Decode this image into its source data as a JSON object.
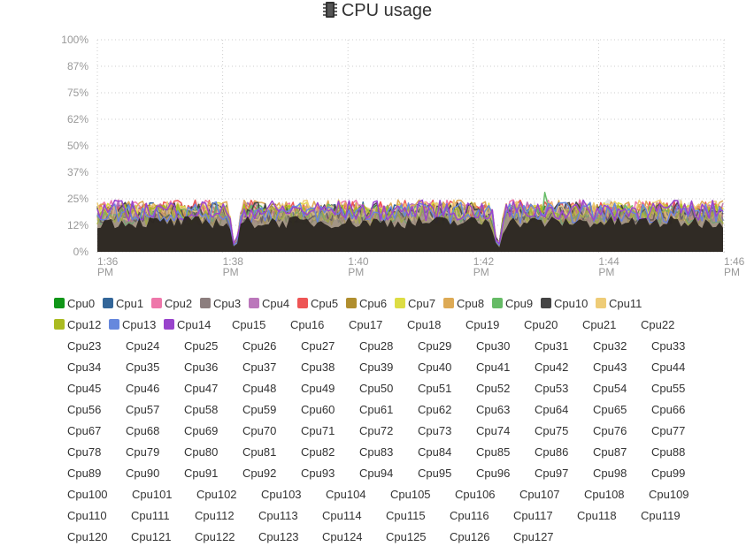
{
  "chart_data": {
    "type": "area",
    "title": "CPU usage",
    "title_icon": "cpu-chip-icon",
    "stacked": false,
    "ylim": [
      0,
      100
    ],
    "y_ticks": [
      "100%",
      "87%",
      "75%",
      "62%",
      "50%",
      "37%",
      "25%",
      "12%",
      "0%"
    ],
    "x_ticks": [
      "1:36 PM",
      "1:38 PM",
      "1:40 PM",
      "1:42 PM",
      "1:44 PM",
      "1:46 PM"
    ],
    "x_range": [
      "1:36 PM",
      "1:46 PM"
    ],
    "grid": true,
    "legend_position": "bottom",
    "dips_to_zero_at": [
      "1:38 PM",
      "1:42 PM"
    ],
    "approx_typical_range_percent": [
      12,
      25
    ],
    "peak_series": "Cpu9",
    "peak_value_percent": 28,
    "series": [
      {
        "name": "Cpu0",
        "color": "#109618"
      },
      {
        "name": "Cpu1",
        "color": "#336699"
      },
      {
        "name": "Cpu2",
        "color": "#ee77aa"
      },
      {
        "name": "Cpu3",
        "color": "#8c7e7e"
      },
      {
        "name": "Cpu4",
        "color": "#bb77bb"
      },
      {
        "name": "Cpu5",
        "color": "#ee5555"
      },
      {
        "name": "Cpu6",
        "color": "#b08e2e"
      },
      {
        "name": "Cpu7",
        "color": "#dddd44"
      },
      {
        "name": "Cpu8",
        "color": "#ddaa55"
      },
      {
        "name": "Cpu9",
        "color": "#66bb66"
      },
      {
        "name": "Cpu10",
        "color": "#444444"
      },
      {
        "name": "Cpu11",
        "color": "#eecc77"
      },
      {
        "name": "Cpu12",
        "color": "#aabb22"
      },
      {
        "name": "Cpu13",
        "color": "#6688dd"
      },
      {
        "name": "Cpu14",
        "color": "#9944cc"
      },
      {
        "name": "Cpu15"
      },
      {
        "name": "Cpu16"
      },
      {
        "name": "Cpu17"
      },
      {
        "name": "Cpu18"
      },
      {
        "name": "Cpu19"
      },
      {
        "name": "Cpu20"
      },
      {
        "name": "Cpu21"
      },
      {
        "name": "Cpu22"
      },
      {
        "name": "Cpu23"
      },
      {
        "name": "Cpu24"
      },
      {
        "name": "Cpu25"
      },
      {
        "name": "Cpu26"
      },
      {
        "name": "Cpu27"
      },
      {
        "name": "Cpu28"
      },
      {
        "name": "Cpu29"
      },
      {
        "name": "Cpu30"
      },
      {
        "name": "Cpu31"
      },
      {
        "name": "Cpu32"
      },
      {
        "name": "Cpu33"
      },
      {
        "name": "Cpu34"
      },
      {
        "name": "Cpu35"
      },
      {
        "name": "Cpu36"
      },
      {
        "name": "Cpu37"
      },
      {
        "name": "Cpu38"
      },
      {
        "name": "Cpu39"
      },
      {
        "name": "Cpu40"
      },
      {
        "name": "Cpu41"
      },
      {
        "name": "Cpu42"
      },
      {
        "name": "Cpu43"
      },
      {
        "name": "Cpu44"
      },
      {
        "name": "Cpu45"
      },
      {
        "name": "Cpu46"
      },
      {
        "name": "Cpu47"
      },
      {
        "name": "Cpu48"
      },
      {
        "name": "Cpu49"
      },
      {
        "name": "Cpu50"
      },
      {
        "name": "Cpu51"
      },
      {
        "name": "Cpu52"
      },
      {
        "name": "Cpu53"
      },
      {
        "name": "Cpu54"
      },
      {
        "name": "Cpu55"
      },
      {
        "name": "Cpu56"
      },
      {
        "name": "Cpu57"
      },
      {
        "name": "Cpu58"
      },
      {
        "name": "Cpu59"
      },
      {
        "name": "Cpu60"
      },
      {
        "name": "Cpu61"
      },
      {
        "name": "Cpu62"
      },
      {
        "name": "Cpu63"
      },
      {
        "name": "Cpu64"
      },
      {
        "name": "Cpu65"
      },
      {
        "name": "Cpu66"
      },
      {
        "name": "Cpu67"
      },
      {
        "name": "Cpu68"
      },
      {
        "name": "Cpu69"
      },
      {
        "name": "Cpu70"
      },
      {
        "name": "Cpu71"
      },
      {
        "name": "Cpu72"
      },
      {
        "name": "Cpu73"
      },
      {
        "name": "Cpu74"
      },
      {
        "name": "Cpu75"
      },
      {
        "name": "Cpu76"
      },
      {
        "name": "Cpu77"
      },
      {
        "name": "Cpu78"
      },
      {
        "name": "Cpu79"
      },
      {
        "name": "Cpu80"
      },
      {
        "name": "Cpu81"
      },
      {
        "name": "Cpu82"
      },
      {
        "name": "Cpu83"
      },
      {
        "name": "Cpu84"
      },
      {
        "name": "Cpu85"
      },
      {
        "name": "Cpu86"
      },
      {
        "name": "Cpu87"
      },
      {
        "name": "Cpu88"
      },
      {
        "name": "Cpu89"
      },
      {
        "name": "Cpu90"
      },
      {
        "name": "Cpu91"
      },
      {
        "name": "Cpu92"
      },
      {
        "name": "Cpu93"
      },
      {
        "name": "Cpu94"
      },
      {
        "name": "Cpu95"
      },
      {
        "name": "Cpu96"
      },
      {
        "name": "Cpu97"
      },
      {
        "name": "Cpu98"
      },
      {
        "name": "Cpu99"
      },
      {
        "name": "Cpu100"
      },
      {
        "name": "Cpu101"
      },
      {
        "name": "Cpu102"
      },
      {
        "name": "Cpu103"
      },
      {
        "name": "Cpu104"
      },
      {
        "name": "Cpu105"
      },
      {
        "name": "Cpu106"
      },
      {
        "name": "Cpu107"
      },
      {
        "name": "Cpu108"
      },
      {
        "name": "Cpu109"
      },
      {
        "name": "Cpu110"
      },
      {
        "name": "Cpu111"
      },
      {
        "name": "Cpu112"
      },
      {
        "name": "Cpu113"
      },
      {
        "name": "Cpu114"
      },
      {
        "name": "Cpu115"
      },
      {
        "name": "Cpu116"
      },
      {
        "name": "Cpu117"
      },
      {
        "name": "Cpu118"
      },
      {
        "name": "Cpu119"
      },
      {
        "name": "Cpu120"
      },
      {
        "name": "Cpu121"
      },
      {
        "name": "Cpu122"
      },
      {
        "name": "Cpu123"
      },
      {
        "name": "Cpu124"
      },
      {
        "name": "Cpu125"
      },
      {
        "name": "Cpu126"
      },
      {
        "name": "Cpu127"
      }
    ]
  }
}
